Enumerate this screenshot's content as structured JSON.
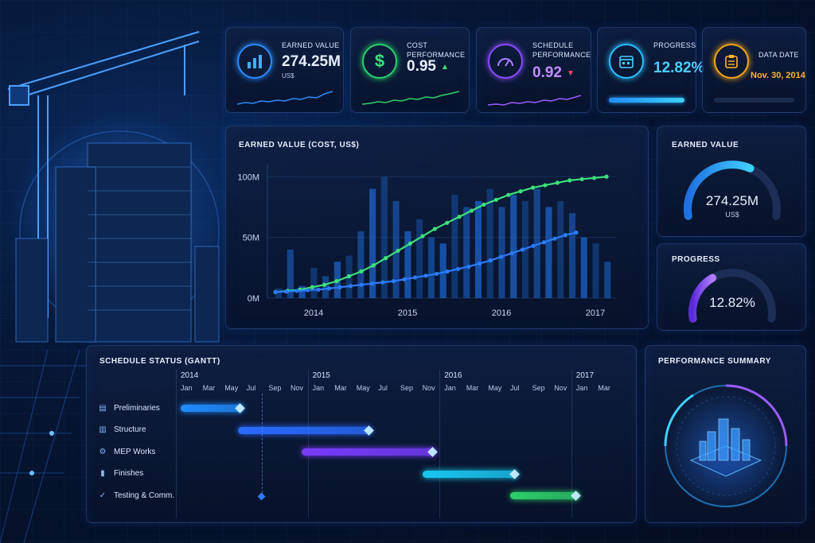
{
  "kpis": {
    "earned_value": {
      "label": "EARNED VALUE",
      "value": "274.25M",
      "unit": "US$",
      "icon": "bar-chart-icon"
    },
    "cost_performance": {
      "label": "COST PERFORMANCE",
      "value": "0.95",
      "trend": "▲",
      "icon": "dollar-icon"
    },
    "schedule_performance": {
      "label_line1": "SCHEDULE",
      "label_line2": "PERFORMANCE",
      "value": "0.92",
      "trend": "▼",
      "icon": "gauge-icon"
    },
    "progress": {
      "label": "PROGRESS",
      "value": "12.82%",
      "progress_fraction": 0.1282,
      "icon": "calendar-icon"
    },
    "data_date": {
      "label": "DATA DATE",
      "value": "Nov. 30, 2014",
      "icon": "clipboard-icon"
    }
  },
  "ev_chart": {
    "title": "EARNED VALUE (COST, US$)",
    "chart_data": {
      "type": "bar",
      "title": "EARNED VALUE (COST, US$)",
      "xlabel": "",
      "ylabel": "",
      "y_ticks": [
        "0M",
        "50M",
        "100M"
      ],
      "x_ticks": [
        "2014",
        "2015",
        "2016",
        "2017"
      ],
      "ylim": [
        0,
        110
      ],
      "bars": [
        8,
        40,
        10,
        25,
        18,
        30,
        35,
        55,
        90,
        100,
        80,
        55,
        65,
        50,
        45,
        85,
        75,
        80,
        90,
        75,
        85,
        80,
        90,
        75,
        80,
        70,
        50,
        45,
        30
      ],
      "series": [
        {
          "values": [
            5,
            6,
            7,
            9,
            11,
            14,
            18,
            22,
            27,
            33,
            39,
            45,
            51,
            57,
            62,
            67,
            72,
            77,
            81,
            85,
            88,
            91,
            93,
            95,
            97,
            98,
            99,
            100
          ]
        },
        {
          "values": [
            5,
            5.5,
            6,
            6.5,
            7,
            8,
            9,
            10,
            11,
            12,
            13,
            14,
            15.5,
            17,
            18.5,
            20,
            22,
            24,
            26,
            28.5,
            31,
            34,
            37,
            40,
            43,
            46,
            49,
            52,
            54
          ]
        }
      ]
    }
  },
  "gauge_ev": {
    "title": "EARNED VALUE",
    "value": "274.25M",
    "unit": "US$",
    "fraction": 0.62
  },
  "gauge_progress": {
    "title": "PROGRESS",
    "value": "12.82%",
    "fraction": 0.1282
  },
  "gantt": {
    "title": "SCHEDULE STATUS (GANTT)",
    "years": [
      {
        "label": "2014",
        "col": 0
      },
      {
        "label": "2015",
        "col": 6
      },
      {
        "label": "2016",
        "col": 12
      },
      {
        "label": "2017",
        "col": 18
      }
    ],
    "months": [
      "Jan",
      "Mar",
      "May",
      "Jul",
      "Sep",
      "Nov",
      "Jan",
      "Mar",
      "May",
      "Jul",
      "Sep",
      "Nov",
      "Jan",
      "Mar",
      "May",
      "Jul",
      "Sep",
      "Nov",
      "Jan",
      "Mar"
    ],
    "tasks": [
      {
        "name": "Preliminaries",
        "icon": "document-icon",
        "start": 0,
        "end": 2.7,
        "color": "#1f8cff"
      },
      {
        "name": "Structure",
        "icon": "bar-chart-icon",
        "start": 2.6,
        "end": 8.6,
        "color": "#2a6bff"
      },
      {
        "name": "MEP Works",
        "icon": "gear-icon",
        "start": 5.5,
        "end": 11.5,
        "color": "#7a3cff"
      },
      {
        "name": "Finishes",
        "icon": "paint-roller-icon",
        "start": 11.0,
        "end": 15.2,
        "color": "#19c8f0"
      },
      {
        "name": "Testing & Comm.",
        "icon": "check-circle-icon",
        "start": 15.0,
        "end": 18.0,
        "color": "#2ed06a"
      }
    ]
  },
  "summary": {
    "title": "PERFORMANCE SUMMARY"
  }
}
